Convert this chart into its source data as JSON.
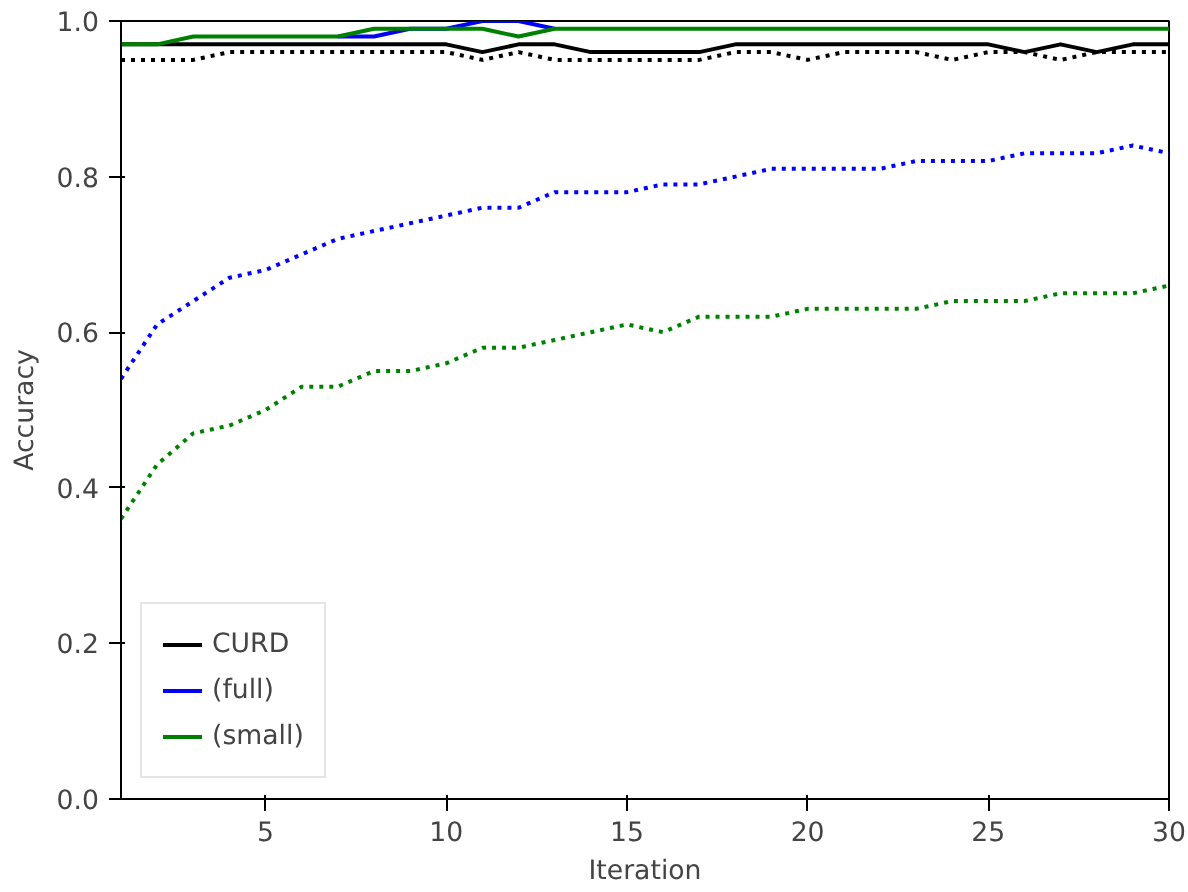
{
  "chart_data": {
    "type": "line",
    "xlabel": "Iteration",
    "ylabel": "Accuracy",
    "x": [
      1,
      2,
      3,
      4,
      5,
      6,
      7,
      8,
      9,
      10,
      11,
      12,
      13,
      14,
      15,
      16,
      17,
      18,
      19,
      20,
      21,
      22,
      23,
      24,
      25,
      26,
      27,
      28,
      29,
      30
    ],
    "xlim": [
      1,
      30
    ],
    "ylim": [
      0,
      1.0
    ],
    "xticks": [
      5,
      10,
      15,
      20,
      25,
      30
    ],
    "yticks": [
      {
        "value": 0,
        "label": "0.0"
      },
      0.2,
      0.4,
      0.6,
      0.8,
      {
        "value": 1,
        "label": "1.0"
      }
    ],
    "grid": false,
    "legend": "bottom left",
    "series": [
      {
        "name": "CURD",
        "color": "#000000",
        "line_style": "solid",
        "values": [
          0.97,
          0.97,
          0.97,
          0.97,
          0.97,
          0.97,
          0.97,
          0.97,
          0.97,
          0.97,
          0.96,
          0.97,
          0.97,
          0.96,
          0.96,
          0.96,
          0.96,
          0.97,
          0.97,
          0.97,
          0.97,
          0.97,
          0.97,
          0.97,
          0.97,
          0.96,
          0.97,
          0.96,
          0.97,
          0.97
        ]
      },
      {
        "name": "(full)",
        "color": "#0000ff",
        "line_style": "solid",
        "values": [
          null,
          null,
          null,
          null,
          null,
          null,
          0.98,
          0.98,
          0.99,
          0.99,
          1.0,
          1.0,
          0.99,
          null,
          null,
          null,
          null,
          null,
          null,
          null,
          null,
          null,
          null,
          null,
          null,
          null,
          null,
          null,
          null,
          null
        ]
      },
      {
        "name": "(small)",
        "color": "#008000",
        "line_style": "solid",
        "values": [
          0.97,
          0.97,
          0.98,
          0.98,
          0.98,
          0.98,
          0.98,
          0.99,
          0.99,
          0.99,
          0.99,
          0.98,
          0.99,
          0.99,
          0.99,
          0.99,
          0.99,
          0.99,
          0.99,
          0.99,
          0.99,
          0.99,
          0.99,
          0.99,
          0.99,
          0.99,
          0.99,
          0.99,
          0.99,
          0.99
        ]
      },
      {
        "color": "#000000",
        "line_style": "dotted",
        "values": [
          0.95,
          0.95,
          0.95,
          0.96,
          0.96,
          0.96,
          0.96,
          0.96,
          0.96,
          0.96,
          0.95,
          0.96,
          0.95,
          0.95,
          0.95,
          0.95,
          0.95,
          0.96,
          0.96,
          0.95,
          0.96,
          0.96,
          0.96,
          0.95,
          0.96,
          0.96,
          0.95,
          0.96,
          0.96,
          0.96
        ]
      },
      {
        "color": "#0000ff",
        "line_style": "dotted",
        "values": [
          0.54,
          0.61,
          0.64,
          0.67,
          0.68,
          0.7,
          0.72,
          0.73,
          0.74,
          0.75,
          0.76,
          0.76,
          0.78,
          0.78,
          0.78,
          0.79,
          0.79,
          0.8,
          0.81,
          0.81,
          0.81,
          0.81,
          0.82,
          0.82,
          0.82,
          0.83,
          0.83,
          0.83,
          0.84,
          0.83
        ]
      },
      {
        "color": "#008000",
        "line_style": "dotted",
        "values": [
          0.36,
          0.43,
          0.47,
          0.48,
          0.5,
          0.53,
          0.53,
          0.55,
          0.55,
          0.56,
          0.58,
          0.58,
          0.59,
          0.6,
          0.61,
          0.6,
          0.62,
          0.62,
          0.62,
          0.63,
          0.63,
          0.63,
          0.63,
          0.64,
          0.64,
          0.64,
          0.65,
          0.65,
          0.65,
          0.66
        ]
      }
    ]
  }
}
